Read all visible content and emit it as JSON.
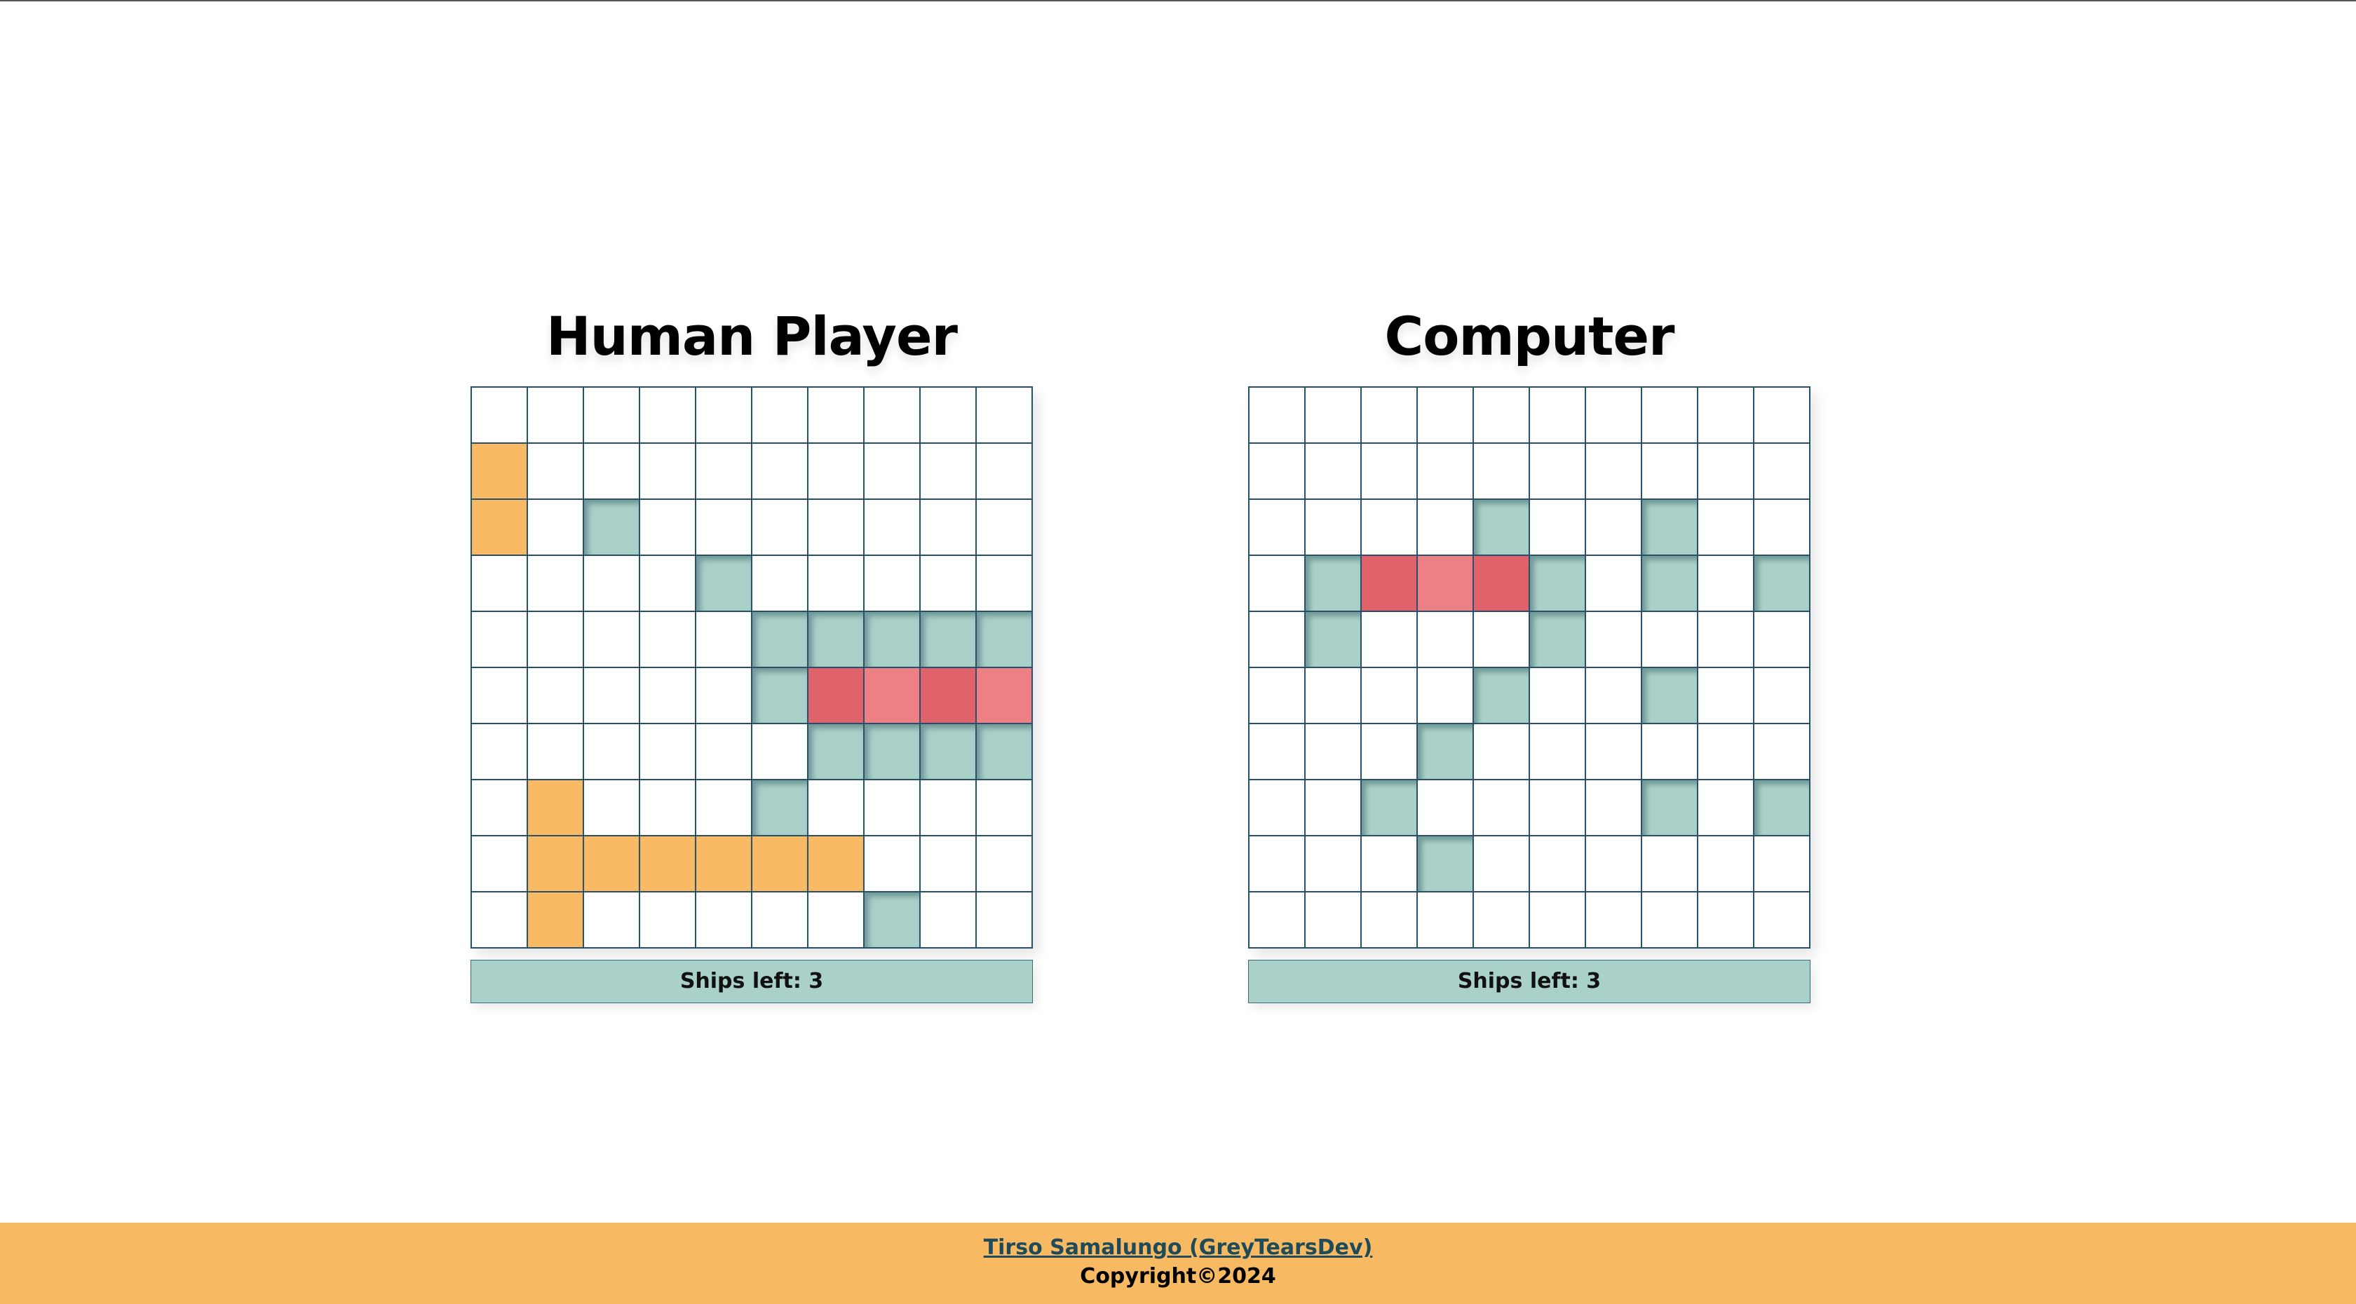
{
  "boards": {
    "human": {
      "title": "Human Player",
      "status": "Ships left: 3",
      "cells": [
        [
          "empty",
          "empty",
          "empty",
          "empty",
          "empty",
          "empty",
          "empty",
          "empty",
          "empty",
          "empty"
        ],
        [
          "ship",
          "empty",
          "empty",
          "empty",
          "empty",
          "empty",
          "empty",
          "empty",
          "empty",
          "empty"
        ],
        [
          "ship",
          "empty",
          "miss",
          "empty",
          "empty",
          "empty",
          "empty",
          "empty",
          "empty",
          "empty"
        ],
        [
          "empty",
          "empty",
          "empty",
          "empty",
          "miss",
          "empty",
          "empty",
          "empty",
          "empty",
          "empty"
        ],
        [
          "empty",
          "empty",
          "empty",
          "empty",
          "empty",
          "miss",
          "miss",
          "miss",
          "miss",
          "miss"
        ],
        [
          "empty",
          "empty",
          "empty",
          "empty",
          "empty",
          "miss",
          "hit",
          "hit2",
          "hit",
          "hit2"
        ],
        [
          "empty",
          "empty",
          "empty",
          "empty",
          "empty",
          "empty",
          "miss",
          "miss",
          "miss",
          "miss"
        ],
        [
          "empty",
          "ship",
          "empty",
          "empty",
          "empty",
          "miss",
          "empty",
          "empty",
          "empty",
          "empty"
        ],
        [
          "empty",
          "ship",
          "ship",
          "ship",
          "ship",
          "ship",
          "ship",
          "empty",
          "empty",
          "empty"
        ],
        [
          "empty",
          "ship",
          "empty",
          "empty",
          "empty",
          "empty",
          "empty",
          "miss",
          "empty",
          "empty"
        ]
      ]
    },
    "computer": {
      "title": "Computer",
      "status": "Ships left: 3",
      "cells": [
        [
          "empty",
          "empty",
          "empty",
          "empty",
          "empty",
          "empty",
          "empty",
          "empty",
          "empty",
          "empty"
        ],
        [
          "empty",
          "empty",
          "empty",
          "empty",
          "empty",
          "empty",
          "empty",
          "empty",
          "empty",
          "empty"
        ],
        [
          "empty",
          "empty",
          "empty",
          "empty",
          "miss",
          "empty",
          "empty",
          "miss",
          "empty",
          "empty"
        ],
        [
          "empty",
          "miss",
          "hit",
          "hit2",
          "hit",
          "miss",
          "empty",
          "miss",
          "empty",
          "miss"
        ],
        [
          "empty",
          "miss",
          "empty",
          "empty",
          "empty",
          "miss",
          "empty",
          "empty",
          "empty",
          "empty"
        ],
        [
          "empty",
          "empty",
          "empty",
          "empty",
          "miss",
          "empty",
          "empty",
          "miss",
          "empty",
          "empty"
        ],
        [
          "empty",
          "empty",
          "empty",
          "miss",
          "empty",
          "empty",
          "empty",
          "empty",
          "empty",
          "empty"
        ],
        [
          "empty",
          "empty",
          "miss",
          "empty",
          "empty",
          "empty",
          "empty",
          "miss",
          "empty",
          "miss"
        ],
        [
          "empty",
          "empty",
          "empty",
          "miss",
          "empty",
          "empty",
          "empty",
          "empty",
          "empty",
          "empty"
        ],
        [
          "empty",
          "empty",
          "empty",
          "empty",
          "empty",
          "empty",
          "empty",
          "empty",
          "empty",
          "empty"
        ]
      ]
    }
  },
  "footer": {
    "author_link": "Tirso Samalungo (GreyTearsDev)",
    "copyright": "Copyright©2024"
  },
  "colors": {
    "ship": "#f7ba63",
    "miss": "#aad1c9",
    "hit": "#e0636b",
    "grid_line": "#29506a",
    "footer_bg": "#f7ba63"
  }
}
